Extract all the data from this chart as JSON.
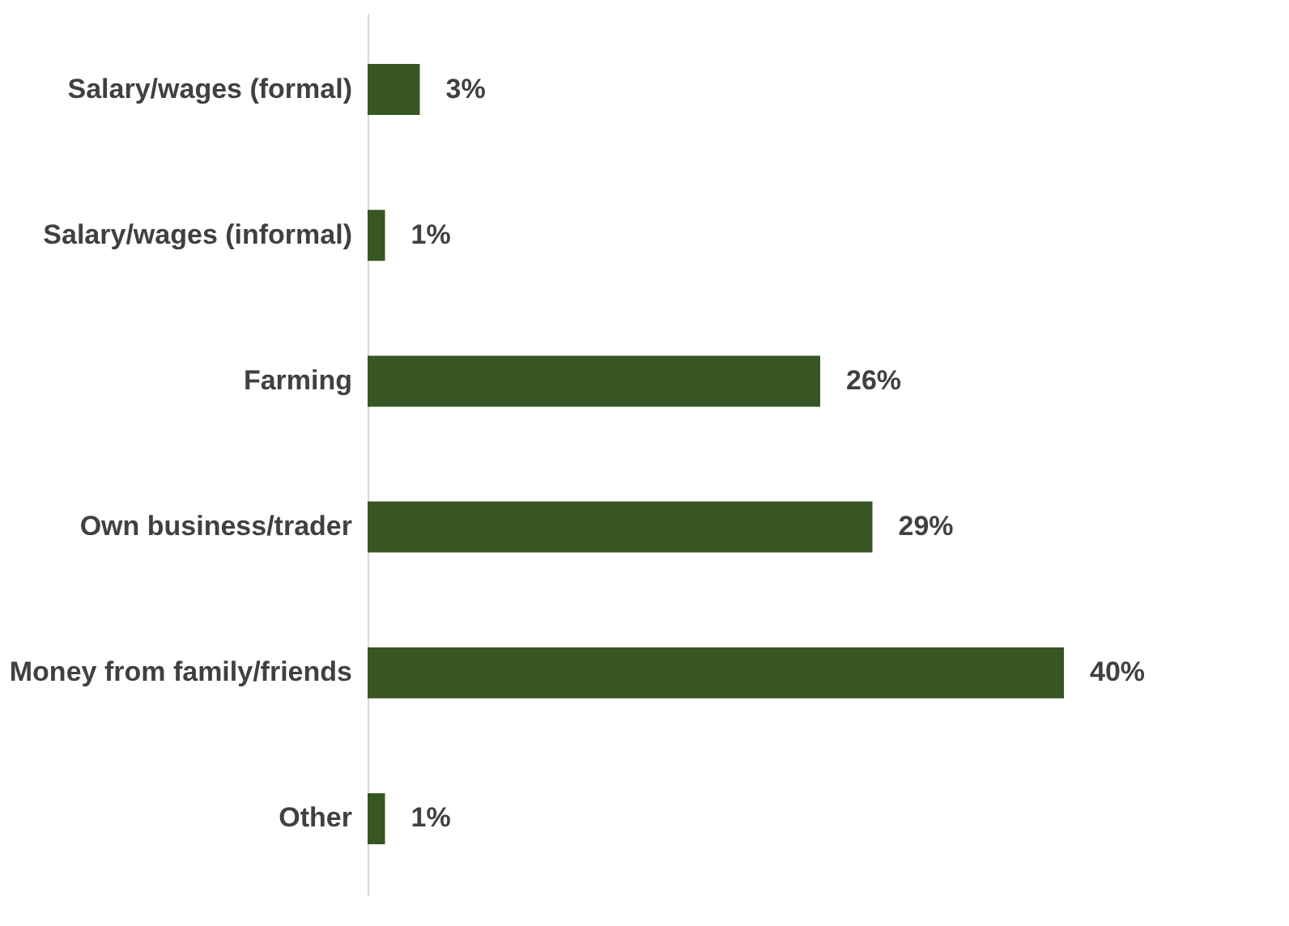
{
  "chart_data": {
    "type": "bar",
    "orientation": "horizontal",
    "categories": [
      "Salary/wages (formal)",
      "Salary/wages (informal)",
      "Farming",
      "Own business/trader",
      "Money from family/friends",
      "Other"
    ],
    "values": [
      3,
      1,
      26,
      29,
      40,
      1
    ],
    "value_labels": [
      "3%",
      "1%",
      "26%",
      "29%",
      "40%",
      "1%"
    ],
    "color": "#375623",
    "tick_labels": "y"
  }
}
